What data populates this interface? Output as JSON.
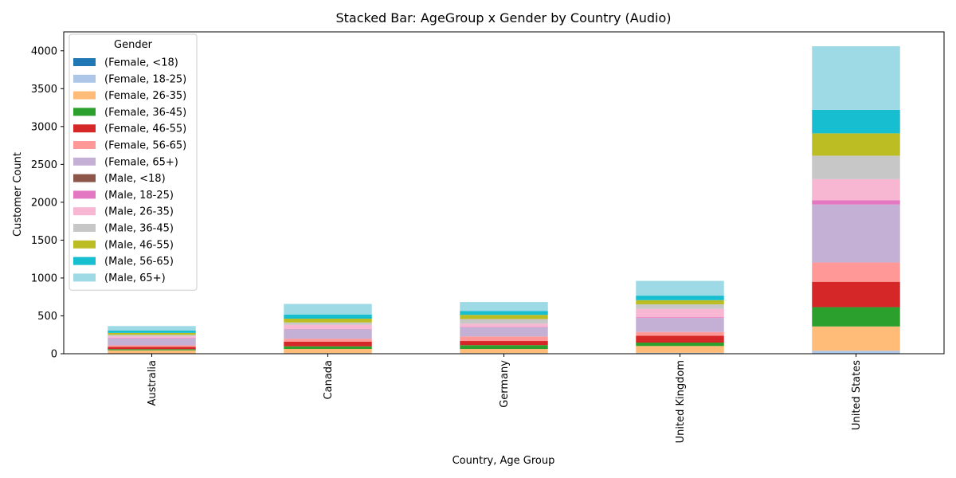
{
  "chart_data": {
    "type": "bar",
    "stacked": true,
    "title": "Stacked Bar: AgeGroup x Gender by Country (Audio)",
    "xlabel": "Country, Age Group",
    "ylabel": "Customer Count",
    "ylim": [
      0,
      4250
    ],
    "yticks": [
      0,
      500,
      1000,
      1500,
      2000,
      2500,
      3000,
      3500,
      4000
    ],
    "categories": [
      "Australia",
      "Canada",
      "Germany",
      "United Kingdom",
      "United States"
    ],
    "legend_title": "Gender",
    "legend_position": "top-left",
    "grid": false,
    "series": [
      {
        "name": "(Female, <18)",
        "color": "#1f77b4",
        "values": [
          0,
          0,
          0,
          0,
          0
        ]
      },
      {
        "name": "(Female, 18-25)",
        "color": "#aec7e8",
        "values": [
          5,
          8,
          8,
          12,
          40
        ]
      },
      {
        "name": "(Female, 26-35)",
        "color": "#ffbb78",
        "values": [
          40,
          55,
          55,
          90,
          320
        ]
      },
      {
        "name": "(Female, 36-45)",
        "color": "#2ca02c",
        "values": [
          15,
          35,
          50,
          45,
          255
        ]
      },
      {
        "name": "(Female, 46-55)",
        "color": "#d62728",
        "values": [
          30,
          60,
          55,
          90,
          335
        ]
      },
      {
        "name": "(Female, 56-65)",
        "color": "#ff9896",
        "values": [
          20,
          40,
          60,
          50,
          255
        ]
      },
      {
        "name": "(Female, 65+)",
        "color": "#c5b0d5",
        "values": [
          90,
          125,
          120,
          185,
          765
        ]
      },
      {
        "name": "(Male, <18)",
        "color": "#8c564b",
        "values": [
          0,
          0,
          0,
          0,
          0
        ]
      },
      {
        "name": "(Male, 18-25)",
        "color": "#e377c2",
        "values": [
          5,
          5,
          5,
          10,
          55
        ]
      },
      {
        "name": "(Male, 26-35)",
        "color": "#f7b6d2",
        "values": [
          25,
          55,
          45,
          110,
          280
        ]
      },
      {
        "name": "(Male, 36-45)",
        "color": "#c7c7c7",
        "values": [
          20,
          30,
          60,
          60,
          310
        ]
      },
      {
        "name": "(Male, 46-55)",
        "color": "#bcbd22",
        "values": [
          25,
          50,
          55,
          55,
          295
        ]
      },
      {
        "name": "(Male, 56-65)",
        "color": "#17becf",
        "values": [
          30,
          55,
          50,
          60,
          310
        ]
      },
      {
        "name": "(Male, 65+)",
        "color": "#9edae5",
        "values": [
          60,
          140,
          120,
          195,
          840
        ]
      }
    ]
  }
}
